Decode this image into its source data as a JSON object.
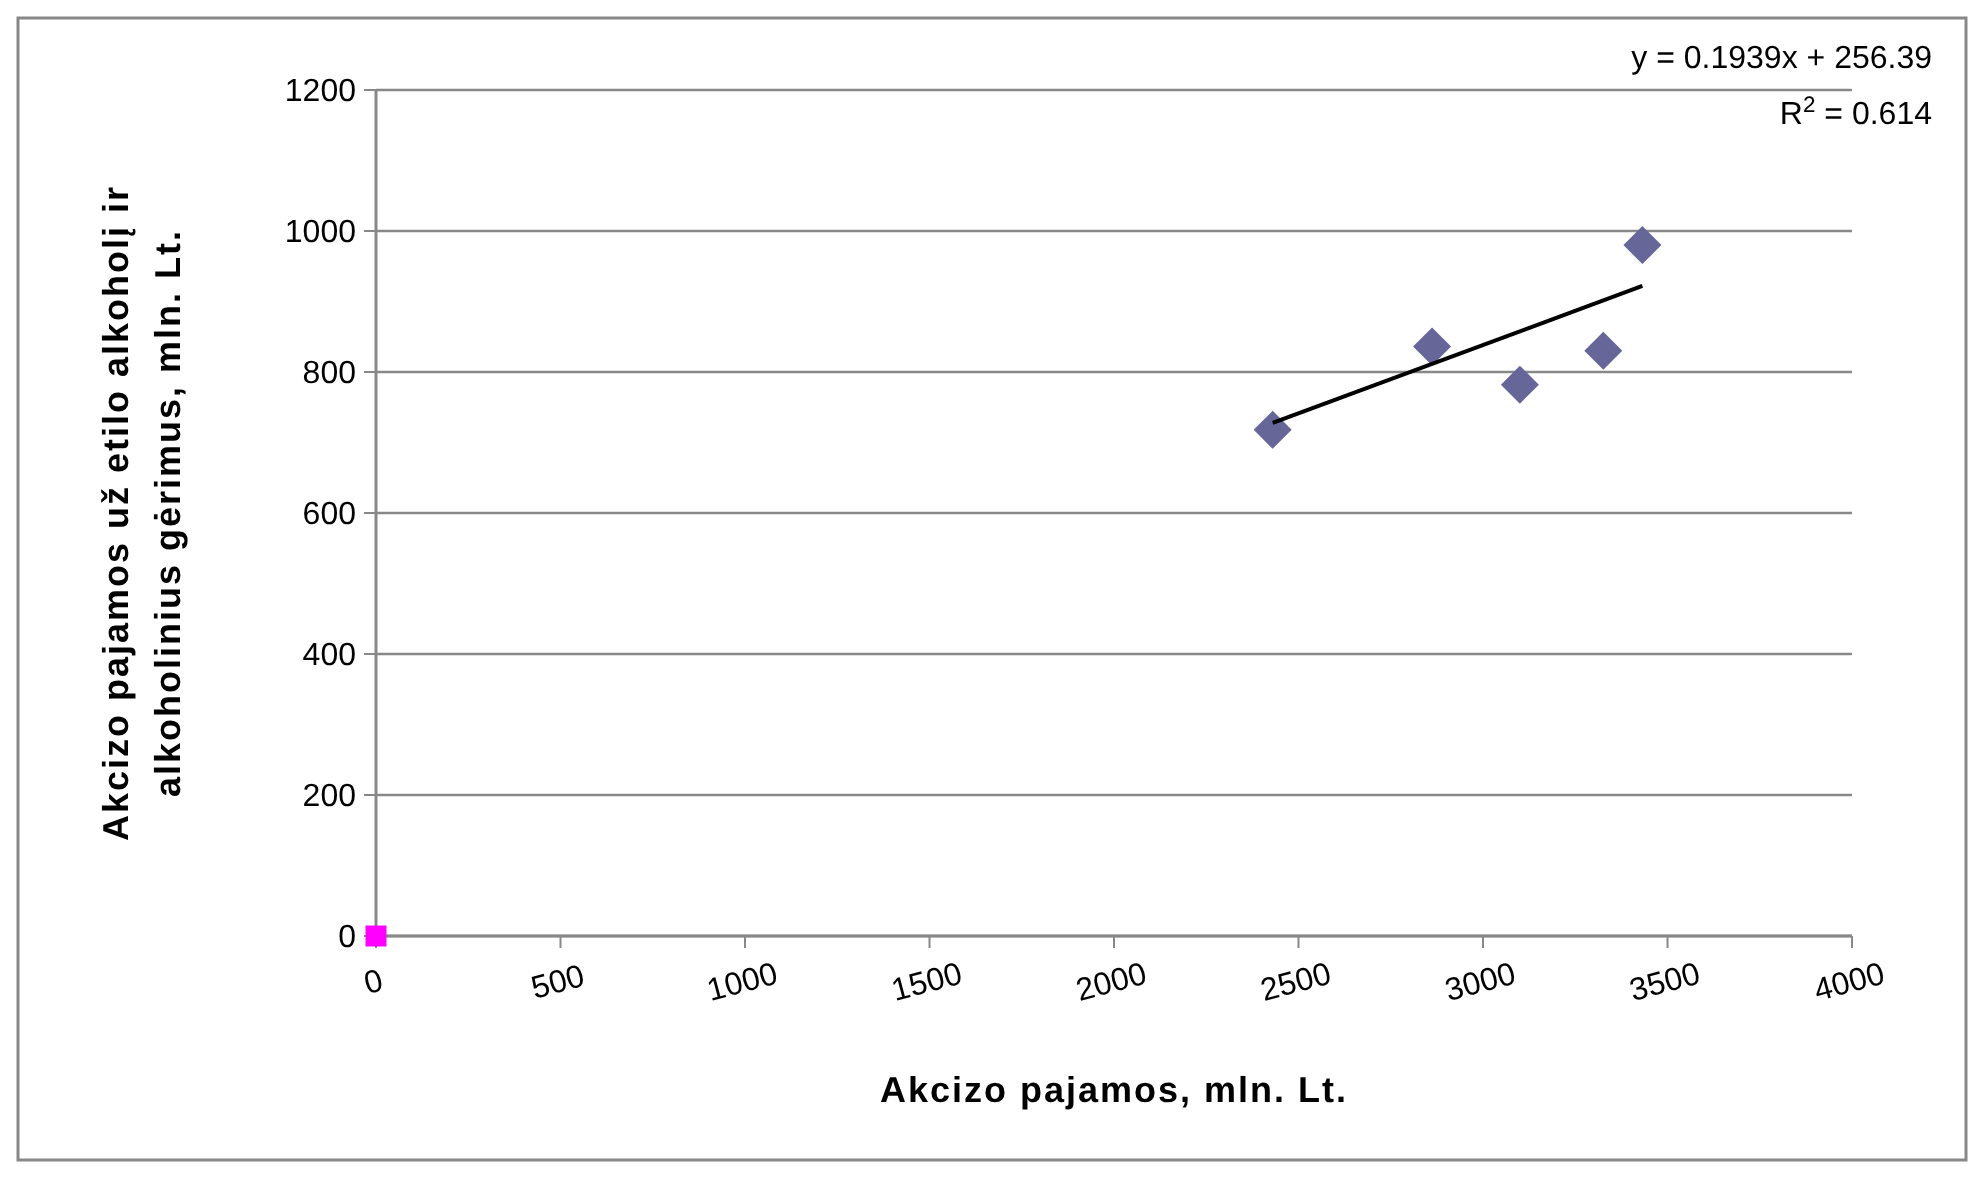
{
  "chart_data": {
    "type": "scatter",
    "xlabel": "Akcizo pajamos, mln. Lt.",
    "ylabel": "Akcizo pajamos už etilo alkoholį ir alkoholinius gėrimus, mln. Lt.",
    "xlim": [
      0,
      4000
    ],
    "xticks": [
      0,
      500,
      1000,
      1500,
      2000,
      2500,
      3000,
      3500,
      4000
    ],
    "ylim": [
      0,
      1200
    ],
    "yticks": [
      0,
      200,
      400,
      600,
      800,
      1000,
      1200
    ],
    "grid": "y",
    "marker": "diamond",
    "series": [
      {
        "color": "#666699",
        "x": [
          2430,
          2862,
          3100,
          3326,
          3432
        ],
        "values": [
          718,
          836,
          782,
          830,
          980
        ]
      },
      {
        "type": "line",
        "color": "#000000",
        "marker": "none",
        "x": [
          2430,
          3432
        ],
        "values": [
          728,
          922
        ]
      },
      {
        "color": "#ff00ff",
        "marker": "square",
        "x": [
          0
        ],
        "values": [
          0
        ]
      }
    ],
    "annotations": [
      "y = 0.1939x + 256.39",
      "R$^{2}$ = 0.614"
    ]
  }
}
